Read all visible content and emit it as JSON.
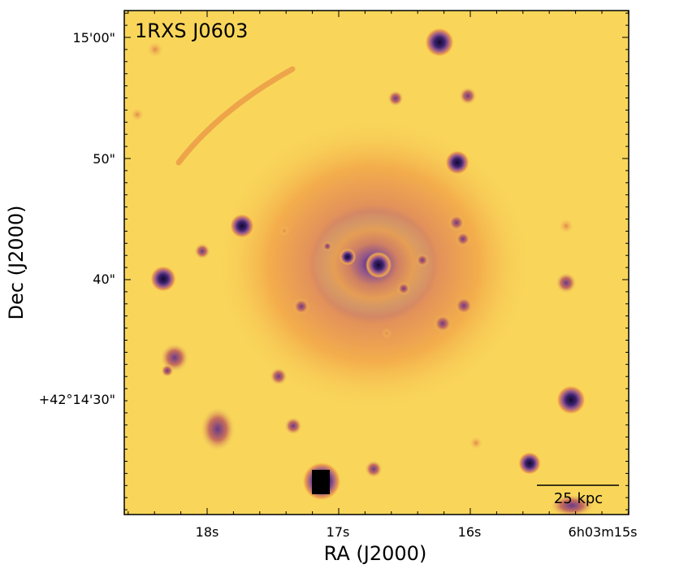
{
  "image": {
    "panel_label": "1RXS J0603",
    "scale_bar_label": "25 kpc",
    "x_axis_title": "RA (J2000)",
    "y_axis_title": "Dec (J2000)",
    "x_ticks": [
      "18s",
      "17s",
      "16s",
      "6h03m15s"
    ],
    "y_ticks": [
      "15'00\"",
      "50\"",
      "40\"",
      "+42°14'30\""
    ],
    "colormap": {
      "background": "#f9d65a",
      "halo": "#f0a24a",
      "core": "#4a2b8a",
      "deep": "#14082e",
      "saturated": "#000000"
    }
  }
}
